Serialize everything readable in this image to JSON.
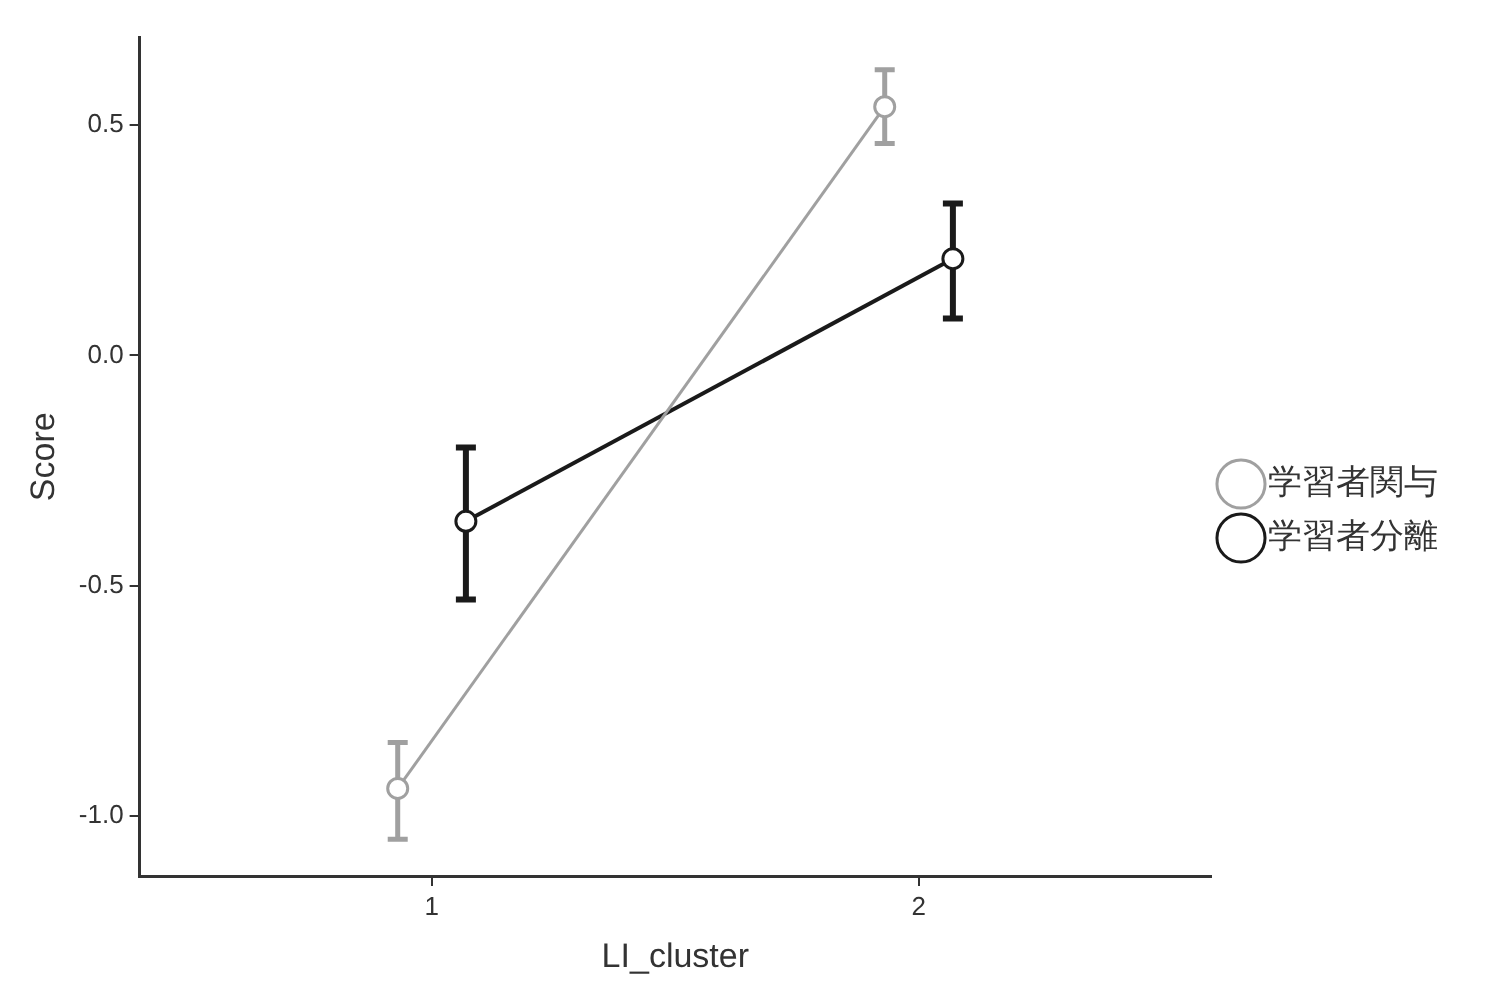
{
  "chart_data": {
    "type": "line",
    "xlabel": "LI_cluster",
    "ylabel": "Score",
    "xlim": [
      0.4,
      2.6
    ],
    "xticks": [
      1,
      2
    ],
    "ylim": [
      -1.13,
      0.69
    ],
    "yticks": [
      {
        "value": 0.5,
        "label": "0.5"
      },
      {
        "value": 0,
        "label": "0.0"
      },
      {
        "value": -0.5,
        "label": "-0.5"
      },
      {
        "value": -1,
        "label": "-1.0"
      }
    ],
    "grid": false,
    "legend": "right",
    "marker": "circle",
    "line_style": "solid",
    "series": [
      {
        "name": "学習者関与",
        "color": "#a0a0a0",
        "x": [
          0.93,
          1.93
        ],
        "values": [
          -0.94,
          0.54
        ],
        "errors": [
          [
            -1.05,
            -0.84
          ],
          [
            0.46,
            0.62
          ]
        ]
      },
      {
        "name": "学習者分離",
        "color": "#1a1a1a",
        "x": [
          1.07,
          2.07
        ],
        "values": [
          -0.36,
          0.21
        ],
        "errors": [
          [
            -0.53,
            -0.2
          ],
          [
            0.08,
            0.33
          ]
        ]
      }
    ]
  }
}
